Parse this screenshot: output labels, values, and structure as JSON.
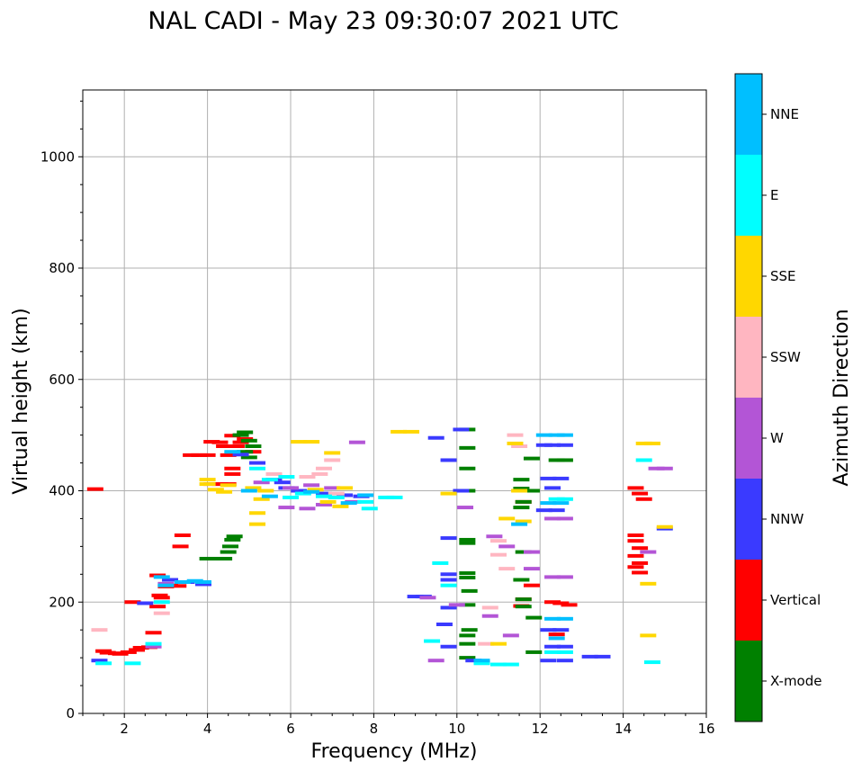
{
  "chart_data": {
    "type": "scatter",
    "title": "NAL CADI - May 23 09:30:07 2021 UTC",
    "xlabel": "Frequency (MHz)",
    "ylabel": "Virtual height (km)",
    "xlim": [
      1,
      16
    ],
    "ylim": [
      0,
      1120
    ],
    "xticks": [
      2,
      4,
      6,
      8,
      10,
      12,
      14,
      16
    ],
    "yticks": [
      0,
      200,
      400,
      600,
      800,
      1000
    ],
    "grid": true,
    "colorbar": {
      "label": "Azimuth Direction",
      "categories": [
        {
          "name": "X-mode",
          "color": "#008000"
        },
        {
          "name": "Vertical",
          "color": "#ff0000"
        },
        {
          "name": "NNW",
          "color": "#3a3aff"
        },
        {
          "name": "W",
          "color": "#b355d6"
        },
        {
          "name": "SSW",
          "color": "#ffb6c1"
        },
        {
          "name": "SSE",
          "color": "#ffd700"
        },
        {
          "name": "E",
          "color": "#00ffff"
        },
        {
          "name": "NNE",
          "color": "#00bfff"
        }
      ]
    },
    "series": [
      {
        "name": "Vertical",
        "points": [
          [
            1.3,
            403
          ],
          [
            1.5,
            112
          ],
          [
            1.6,
            109
          ],
          [
            1.8,
            108
          ],
          [
            1.9,
            107
          ],
          [
            2.1,
            110
          ],
          [
            2.2,
            200
          ],
          [
            2.3,
            114
          ],
          [
            2.4,
            118
          ],
          [
            2.6,
            119
          ],
          [
            2.7,
            145
          ],
          [
            2.8,
            192
          ],
          [
            2.85,
            212
          ],
          [
            2.9,
            208
          ],
          [
            3.0,
            228
          ],
          [
            3.1,
            230
          ],
          [
            3.3,
            229
          ],
          [
            3.35,
            300
          ],
          [
            3.4,
            320
          ],
          [
            3.6,
            464
          ],
          [
            3.8,
            464
          ],
          [
            4.0,
            464
          ],
          [
            4.1,
            488
          ],
          [
            4.3,
            487
          ],
          [
            4.4,
            480
          ],
          [
            4.5,
            464
          ],
          [
            4.1,
            412
          ],
          [
            4.3,
            412
          ],
          [
            4.5,
            412
          ],
          [
            4.6,
            499
          ],
          [
            4.7,
            480
          ],
          [
            4.8,
            487
          ],
          [
            4.9,
            493
          ],
          [
            5.1,
            470
          ],
          [
            14.3,
            405
          ],
          [
            14.4,
            395
          ],
          [
            14.5,
            385
          ],
          [
            14.3,
            320
          ],
          [
            14.3,
            310
          ],
          [
            14.4,
            297
          ],
          [
            14.3,
            283
          ],
          [
            14.4,
            270
          ],
          [
            14.3,
            263
          ],
          [
            14.4,
            253
          ],
          [
            12.3,
            200
          ],
          [
            12.5,
            198
          ],
          [
            12.7,
            195
          ],
          [
            12.4,
            142
          ],
          [
            11.6,
            205
          ],
          [
            11.55,
            193
          ],
          [
            11.6,
            380
          ],
          [
            11.8,
            230
          ],
          [
            4.6,
            440
          ],
          [
            4.6,
            430
          ],
          [
            2.8,
            248
          ]
        ]
      },
      {
        "name": "X-mode",
        "points": [
          [
            4.0,
            278
          ],
          [
            4.2,
            278
          ],
          [
            4.4,
            278
          ],
          [
            4.5,
            290
          ],
          [
            4.55,
            300
          ],
          [
            4.6,
            312
          ],
          [
            4.65,
            318
          ],
          [
            4.8,
            500
          ],
          [
            4.9,
            505
          ],
          [
            5.0,
            490
          ],
          [
            5.1,
            480
          ],
          [
            4.9,
            470
          ],
          [
            5.0,
            460
          ],
          [
            11.55,
            420
          ],
          [
            11.55,
            404
          ],
          [
            11.6,
            380
          ],
          [
            11.55,
            370
          ],
          [
            11.6,
            290
          ],
          [
            11.6,
            205
          ],
          [
            11.6,
            192
          ],
          [
            11.55,
            240
          ],
          [
            11.8,
            458
          ],
          [
            11.8,
            400
          ],
          [
            11.85,
            172
          ],
          [
            11.85,
            110
          ],
          [
            12.4,
            455
          ],
          [
            12.6,
            455
          ],
          [
            10.25,
            510
          ],
          [
            10.25,
            477
          ],
          [
            10.25,
            440
          ],
          [
            10.25,
            400
          ],
          [
            10.25,
            312
          ],
          [
            10.25,
            306
          ],
          [
            10.25,
            252
          ],
          [
            10.25,
            244
          ],
          [
            10.3,
            220
          ],
          [
            10.25,
            195
          ],
          [
            10.3,
            150
          ],
          [
            10.25,
            140
          ],
          [
            10.25,
            125
          ],
          [
            10.25,
            100
          ]
        ]
      },
      {
        "name": "NNW",
        "points": [
          [
            1.4,
            95
          ],
          [
            2.5,
            198
          ],
          [
            3.1,
            240
          ],
          [
            3.5,
            236
          ],
          [
            3.9,
            232
          ],
          [
            4.8,
            465
          ],
          [
            5.2,
            450
          ],
          [
            5.6,
            420
          ],
          [
            5.8,
            415
          ],
          [
            5.9,
            405
          ],
          [
            6.2,
            400
          ],
          [
            6.8,
            395
          ],
          [
            7.3,
            392
          ],
          [
            7.7,
            390
          ],
          [
            9.0,
            210
          ],
          [
            9.2,
            210
          ],
          [
            9.5,
            495
          ],
          [
            9.8,
            455
          ],
          [
            9.8,
            315
          ],
          [
            9.8,
            250
          ],
          [
            9.8,
            240
          ],
          [
            9.8,
            190
          ],
          [
            9.7,
            160
          ],
          [
            9.8,
            120
          ],
          [
            10.1,
            400
          ],
          [
            10.1,
            510
          ],
          [
            10.4,
            95
          ],
          [
            10.6,
            92
          ],
          [
            12.1,
            482
          ],
          [
            12.3,
            482
          ],
          [
            12.6,
            482
          ],
          [
            12.2,
            422
          ],
          [
            12.5,
            422
          ],
          [
            12.3,
            405
          ],
          [
            12.1,
            365
          ],
          [
            12.4,
            365
          ],
          [
            12.2,
            150
          ],
          [
            12.5,
            150
          ],
          [
            12.3,
            120
          ],
          [
            12.6,
            120
          ],
          [
            12.2,
            95
          ],
          [
            12.6,
            95
          ],
          [
            13.2,
            102
          ],
          [
            13.5,
            102
          ],
          [
            15.0,
            332
          ]
        ]
      },
      {
        "name": "W",
        "points": [
          [
            2.7,
            120
          ],
          [
            3.0,
            233
          ],
          [
            5.3,
            415
          ],
          [
            5.9,
            370
          ],
          [
            6.4,
            368
          ],
          [
            6.8,
            375
          ],
          [
            6.0,
            405
          ],
          [
            6.5,
            410
          ],
          [
            7.0,
            405
          ],
          [
            7.5,
            380
          ],
          [
            7.6,
            487
          ],
          [
            9.3,
            208
          ],
          [
            9.5,
            95
          ],
          [
            10.0,
            195
          ],
          [
            10.2,
            370
          ],
          [
            10.8,
            175
          ],
          [
            11.2,
            300
          ],
          [
            11.3,
            140
          ],
          [
            11.8,
            290
          ],
          [
            11.8,
            260
          ],
          [
            12.3,
            350
          ],
          [
            12.6,
            350
          ],
          [
            12.3,
            245
          ],
          [
            12.6,
            245
          ],
          [
            14.8,
            440
          ],
          [
            15.0,
            440
          ],
          [
            14.6,
            290
          ],
          [
            10.9,
            318
          ]
        ]
      },
      {
        "name": "SSW",
        "points": [
          [
            1.4,
            150
          ],
          [
            2.9,
            180
          ],
          [
            5.6,
            430
          ],
          [
            6.4,
            425
          ],
          [
            6.7,
            430
          ],
          [
            6.8,
            440
          ],
          [
            7.0,
            455
          ],
          [
            7.1,
            395
          ],
          [
            11.0,
            310
          ],
          [
            11.2,
            260
          ],
          [
            11.0,
            285
          ],
          [
            10.7,
            125
          ],
          [
            10.8,
            190
          ],
          [
            11.4,
            500
          ],
          [
            11.5,
            480
          ]
        ]
      },
      {
        "name": "SSE",
        "points": [
          [
            4.0,
            412
          ],
          [
            4.0,
            420
          ],
          [
            4.2,
            402
          ],
          [
            4.4,
            398
          ],
          [
            4.5,
            410
          ],
          [
            5.1,
            405
          ],
          [
            5.3,
            385
          ],
          [
            5.4,
            400
          ],
          [
            5.2,
            360
          ],
          [
            5.2,
            340
          ],
          [
            6.2,
            488
          ],
          [
            6.5,
            488
          ],
          [
            6.6,
            402
          ],
          [
            6.9,
            380
          ],
          [
            7.2,
            372
          ],
          [
            7.3,
            405
          ],
          [
            8.6,
            506
          ],
          [
            8.9,
            506
          ],
          [
            11.0,
            125
          ],
          [
            11.5,
            400
          ],
          [
            11.4,
            485
          ],
          [
            11.2,
            350
          ],
          [
            11.6,
            345
          ],
          [
            14.5,
            485
          ],
          [
            14.7,
            485
          ],
          [
            14.6,
            233
          ],
          [
            14.6,
            140
          ],
          [
            15.0,
            335
          ],
          [
            9.8,
            395
          ],
          [
            7.0,
            468
          ]
        ]
      },
      {
        "name": "E",
        "points": [
          [
            1.5,
            90
          ],
          [
            2.2,
            90
          ],
          [
            2.7,
            125
          ],
          [
            2.9,
            200
          ],
          [
            5.2,
            440
          ],
          [
            5.5,
            420
          ],
          [
            5.9,
            425
          ],
          [
            6.0,
            388
          ],
          [
            6.3,
            395
          ],
          [
            6.8,
            390
          ],
          [
            7.1,
            388
          ],
          [
            7.8,
            380
          ],
          [
            7.9,
            368
          ],
          [
            8.3,
            388
          ],
          [
            8.5,
            388
          ],
          [
            9.4,
            130
          ],
          [
            9.6,
            270
          ],
          [
            9.8,
            230
          ],
          [
            10.6,
            90
          ],
          [
            11.0,
            88
          ],
          [
            11.3,
            88
          ],
          [
            12.4,
            385
          ],
          [
            12.6,
            385
          ],
          [
            12.3,
            110
          ],
          [
            12.6,
            110
          ],
          [
            14.7,
            92
          ],
          [
            14.5,
            455
          ]
        ]
      },
      {
        "name": "NNE",
        "points": [
          [
            2.9,
            245
          ],
          [
            3.0,
            230
          ],
          [
            3.4,
            236
          ],
          [
            3.7,
            238
          ],
          [
            3.9,
            236
          ],
          [
            4.6,
            470
          ],
          [
            5.0,
            400
          ],
          [
            5.5,
            390
          ],
          [
            6.5,
            398
          ],
          [
            7.4,
            378
          ],
          [
            7.8,
            392
          ],
          [
            12.1,
            500
          ],
          [
            12.4,
            500
          ],
          [
            12.6,
            500
          ],
          [
            12.2,
            378
          ],
          [
            12.5,
            378
          ],
          [
            12.3,
            170
          ],
          [
            12.6,
            170
          ],
          [
            12.4,
            135
          ],
          [
            11.5,
            340
          ],
          [
            10.6,
            95
          ]
        ]
      }
    ]
  }
}
